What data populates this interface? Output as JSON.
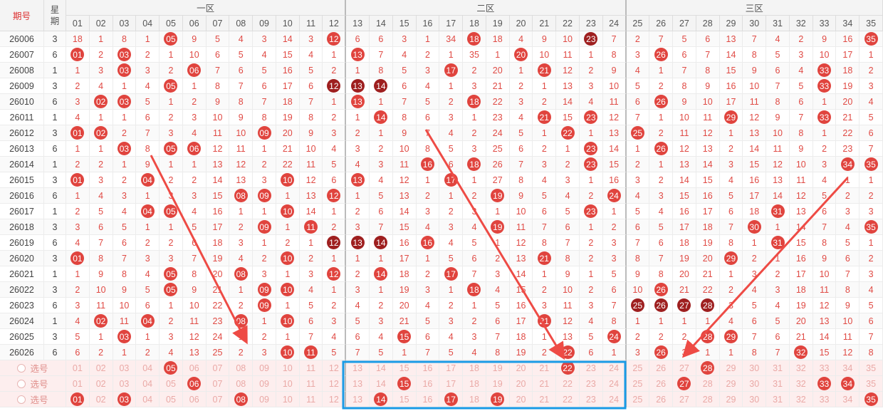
{
  "header": {
    "period": "期号",
    "weekday": "星期",
    "zones": [
      "一区",
      "二区",
      "三区"
    ],
    "numbers": [
      "01",
      "02",
      "03",
      "04",
      "05",
      "06",
      "07",
      "08",
      "09",
      "10",
      "11",
      "12",
      "13",
      "14",
      "15",
      "16",
      "17",
      "18",
      "19",
      "20",
      "21",
      "22",
      "23",
      "24",
      "25",
      "26",
      "27",
      "28",
      "29",
      "30",
      "31",
      "32",
      "33",
      "34",
      "35"
    ]
  },
  "rows": [
    {
      "period": "26006",
      "weekday": "3",
      "cells": [
        "18",
        "1",
        "8",
        "1",
        "05",
        "9",
        "5",
        "4",
        "3",
        "14",
        "3",
        "12",
        "6",
        "6",
        "3",
        "1",
        "34",
        "18",
        "18",
        "4",
        "9",
        "10",
        "23",
        "7",
        "2",
        "7",
        "5",
        "6",
        "13",
        "7",
        "4",
        "2",
        "9",
        "16",
        "35"
      ],
      "hits": [
        5,
        12,
        18,
        23,
        35
      ],
      "dark": [
        23
      ]
    },
    {
      "period": "26007",
      "weekday": "6",
      "cells": [
        "01",
        "2",
        "03",
        "2",
        "1",
        "10",
        "6",
        "5",
        "4",
        "15",
        "4",
        "1",
        "13",
        "7",
        "4",
        "2",
        "1",
        "35",
        "1",
        "20",
        "10",
        "11",
        "1",
        "8",
        "3",
        "26",
        "6",
        "7",
        "14",
        "8",
        "5",
        "3",
        "10",
        "17",
        "1"
      ],
      "hits": [
        1,
        3,
        13,
        20,
        26
      ],
      "dark": []
    },
    {
      "period": "26008",
      "weekday": "1",
      "cells": [
        "1",
        "3",
        "03",
        "3",
        "2",
        "06",
        "7",
        "6",
        "5",
        "16",
        "5",
        "2",
        "1",
        "8",
        "5",
        "3",
        "17",
        "2",
        "20",
        "1",
        "21",
        "12",
        "2",
        "9",
        "4",
        "1",
        "7",
        "8",
        "15",
        "9",
        "6",
        "4",
        "33",
        "18",
        "2"
      ],
      "hits": [
        3,
        6,
        17,
        21,
        33
      ],
      "dark": []
    },
    {
      "period": "26009",
      "weekday": "3",
      "cells": [
        "2",
        "4",
        "1",
        "4",
        "05",
        "1",
        "8",
        "7",
        "6",
        "17",
        "6",
        "12",
        "13",
        "14",
        "6",
        "4",
        "1",
        "3",
        "21",
        "2",
        "1",
        "13",
        "3",
        "10",
        "5",
        "2",
        "8",
        "9",
        "16",
        "10",
        "7",
        "5",
        "33",
        "19",
        "3"
      ],
      "hits": [
        5,
        12,
        13,
        14,
        33
      ],
      "dark": [
        12,
        13,
        14
      ]
    },
    {
      "period": "26010",
      "weekday": "6",
      "cells": [
        "3",
        "02",
        "03",
        "5",
        "1",
        "2",
        "9",
        "8",
        "7",
        "18",
        "7",
        "1",
        "13",
        "1",
        "7",
        "5",
        "2",
        "18",
        "22",
        "3",
        "2",
        "14",
        "4",
        "11",
        "6",
        "26",
        "9",
        "10",
        "17",
        "11",
        "8",
        "6",
        "1",
        "20",
        "4"
      ],
      "hits": [
        2,
        3,
        13,
        18,
        26
      ],
      "dark": []
    },
    {
      "period": "26011",
      "weekday": "1",
      "cells": [
        "4",
        "1",
        "1",
        "6",
        "2",
        "3",
        "10",
        "9",
        "8",
        "19",
        "8",
        "2",
        "1",
        "14",
        "8",
        "6",
        "3",
        "1",
        "23",
        "4",
        "21",
        "15",
        "23",
        "12",
        "7",
        "1",
        "10",
        "11",
        "29",
        "12",
        "9",
        "7",
        "33",
        "21",
        "5"
      ],
      "hits": [
        14,
        21,
        23,
        29,
        33
      ],
      "dark": []
    },
    {
      "period": "26012",
      "weekday": "3",
      "cells": [
        "01",
        "02",
        "2",
        "7",
        "3",
        "4",
        "11",
        "10",
        "09",
        "20",
        "9",
        "3",
        "2",
        "1",
        "9",
        "7",
        "4",
        "2",
        "24",
        "5",
        "1",
        "22",
        "1",
        "13",
        "25",
        "2",
        "11",
        "12",
        "1",
        "13",
        "10",
        "8",
        "1",
        "22",
        "6"
      ],
      "hits": [
        1,
        2,
        9,
        22,
        25
      ],
      "dark": []
    },
    {
      "period": "26013",
      "weekday": "6",
      "cells": [
        "1",
        "1",
        "03",
        "8",
        "05",
        "06",
        "12",
        "11",
        "1",
        "21",
        "10",
        "4",
        "3",
        "2",
        "10",
        "8",
        "5",
        "3",
        "25",
        "6",
        "2",
        "1",
        "23",
        "14",
        "1",
        "26",
        "12",
        "13",
        "2",
        "14",
        "11",
        "9",
        "2",
        "23",
        "7"
      ],
      "hits": [
        3,
        5,
        6,
        23,
        26
      ],
      "dark": []
    },
    {
      "period": "26014",
      "weekday": "1",
      "cells": [
        "2",
        "2",
        "1",
        "9",
        "1",
        "1",
        "13",
        "12",
        "2",
        "22",
        "11",
        "5",
        "4",
        "3",
        "11",
        "16",
        "6",
        "18",
        "26",
        "7",
        "3",
        "2",
        "23",
        "15",
        "2",
        "1",
        "13",
        "14",
        "3",
        "15",
        "12",
        "10",
        "3",
        "34",
        "35"
      ],
      "hits": [
        16,
        18,
        23,
        34,
        35
      ],
      "dark": []
    },
    {
      "period": "26015",
      "weekday": "3",
      "cells": [
        "01",
        "3",
        "2",
        "04",
        "2",
        "2",
        "14",
        "13",
        "3",
        "10",
        "12",
        "6",
        "13",
        "4",
        "12",
        "1",
        "17",
        "1",
        "27",
        "8",
        "4",
        "3",
        "1",
        "16",
        "3",
        "2",
        "14",
        "15",
        "4",
        "16",
        "13",
        "11",
        "4",
        "1",
        "1"
      ],
      "hits": [
        1,
        4,
        10,
        13,
        17
      ],
      "dark": []
    },
    {
      "period": "26016",
      "weekday": "6",
      "cells": [
        "1",
        "4",
        "3",
        "1",
        "3",
        "3",
        "15",
        "08",
        "09",
        "1",
        "13",
        "12",
        "1",
        "5",
        "13",
        "2",
        "1",
        "2",
        "19",
        "9",
        "5",
        "4",
        "2",
        "24",
        "4",
        "3",
        "15",
        "16",
        "5",
        "17",
        "14",
        "12",
        "5",
        "2",
        "2"
      ],
      "hits": [
        8,
        9,
        12,
        19,
        24
      ],
      "dark": []
    },
    {
      "period": "26017",
      "weekday": "1",
      "cells": [
        "2",
        "5",
        "4",
        "04",
        "05",
        "4",
        "16",
        "1",
        "1",
        "10",
        "14",
        "1",
        "2",
        "6",
        "14",
        "3",
        "2",
        "3",
        "1",
        "10",
        "6",
        "5",
        "23",
        "1",
        "5",
        "4",
        "16",
        "17",
        "6",
        "18",
        "31",
        "13",
        "6",
        "3",
        "3"
      ],
      "hits": [
        4,
        5,
        10,
        23,
        31
      ],
      "dark": []
    },
    {
      "period": "26018",
      "weekday": "3",
      "cells": [
        "3",
        "6",
        "5",
        "1",
        "1",
        "5",
        "17",
        "2",
        "09",
        "1",
        "11",
        "2",
        "3",
        "7",
        "15",
        "4",
        "3",
        "4",
        "19",
        "11",
        "7",
        "6",
        "1",
        "2",
        "6",
        "5",
        "17",
        "18",
        "7",
        "30",
        "1",
        "14",
        "7",
        "4",
        "35"
      ],
      "hits": [
        9,
        11,
        19,
        30,
        35
      ],
      "dark": []
    },
    {
      "period": "26019",
      "weekday": "6",
      "cells": [
        "4",
        "7",
        "6",
        "2",
        "2",
        "6",
        "18",
        "3",
        "1",
        "2",
        "1",
        "12",
        "13",
        "14",
        "16",
        "16",
        "4",
        "5",
        "1",
        "12",
        "8",
        "7",
        "2",
        "3",
        "7",
        "6",
        "18",
        "19",
        "8",
        "1",
        "31",
        "15",
        "8",
        "5",
        "1"
      ],
      "hits": [
        12,
        13,
        14,
        16,
        31
      ],
      "dark": [
        12,
        13,
        14
      ]
    },
    {
      "period": "26020",
      "weekday": "3",
      "cells": [
        "01",
        "8",
        "7",
        "3",
        "3",
        "7",
        "19",
        "4",
        "2",
        "10",
        "2",
        "1",
        "1",
        "1",
        "17",
        "1",
        "5",
        "6",
        "2",
        "13",
        "21",
        "8",
        "2",
        "3",
        "8",
        "7",
        "19",
        "20",
        "29",
        "2",
        "1",
        "16",
        "9",
        "6",
        "2"
      ],
      "hits": [
        1,
        10,
        21,
        29
      ],
      "dark": []
    },
    {
      "period": "26021",
      "weekday": "1",
      "cells": [
        "1",
        "9",
        "8",
        "4",
        "05",
        "8",
        "20",
        "08",
        "3",
        "1",
        "3",
        "12",
        "2",
        "14",
        "18",
        "2",
        "17",
        "7",
        "3",
        "14",
        "1",
        "9",
        "1",
        "5",
        "9",
        "8",
        "20",
        "21",
        "1",
        "3",
        "2",
        "17",
        "10",
        "7",
        "3"
      ],
      "hits": [
        5,
        8,
        12,
        14,
        17
      ],
      "dark": []
    },
    {
      "period": "26022",
      "weekday": "3",
      "cells": [
        "2",
        "10",
        "9",
        "5",
        "05",
        "9",
        "21",
        "1",
        "09",
        "10",
        "4",
        "1",
        "3",
        "1",
        "19",
        "3",
        "1",
        "18",
        "4",
        "15",
        "2",
        "10",
        "2",
        "6",
        "10",
        "26",
        "21",
        "22",
        "2",
        "4",
        "3",
        "18",
        "11",
        "8",
        "4"
      ],
      "hits": [
        5,
        9,
        10,
        18,
        26
      ],
      "dark": []
    },
    {
      "period": "26023",
      "weekday": "6",
      "cells": [
        "3",
        "11",
        "10",
        "6",
        "1",
        "10",
        "22",
        "2",
        "09",
        "1",
        "5",
        "2",
        "4",
        "2",
        "20",
        "4",
        "2",
        "1",
        "5",
        "16",
        "3",
        "11",
        "3",
        "7",
        "25",
        "26",
        "27",
        "28",
        "3",
        "5",
        "4",
        "19",
        "12",
        "9",
        "5"
      ],
      "hits": [
        9,
        25,
        26,
        27,
        28
      ],
      "dark": [
        25,
        26,
        27,
        28
      ]
    },
    {
      "period": "26024",
      "weekday": "1",
      "cells": [
        "4",
        "02",
        "11",
        "04",
        "2",
        "11",
        "23",
        "08",
        "1",
        "10",
        "6",
        "3",
        "5",
        "3",
        "21",
        "5",
        "3",
        "2",
        "6",
        "17",
        "21",
        "12",
        "4",
        "8",
        "1",
        "1",
        "1",
        "1",
        "4",
        "6",
        "5",
        "20",
        "13",
        "10",
        "6"
      ],
      "hits": [
        2,
        4,
        8,
        10,
        21
      ],
      "dark": []
    },
    {
      "period": "26025",
      "weekday": "3",
      "cells": [
        "5",
        "1",
        "03",
        "1",
        "3",
        "12",
        "24",
        "1",
        "2",
        "1",
        "7",
        "4",
        "6",
        "4",
        "15",
        "6",
        "4",
        "3",
        "7",
        "18",
        "1",
        "13",
        "5",
        "24",
        "2",
        "2",
        "2",
        "28",
        "29",
        "7",
        "6",
        "21",
        "14",
        "11",
        "7"
      ],
      "hits": [
        3,
        15,
        24,
        28,
        29
      ],
      "dark": []
    },
    {
      "period": "26026",
      "weekday": "6",
      "cells": [
        "6",
        "2",
        "1",
        "2",
        "4",
        "13",
        "25",
        "2",
        "3",
        "10",
        "11",
        "5",
        "7",
        "5",
        "1",
        "7",
        "5",
        "4",
        "8",
        "19",
        "2",
        "22",
        "6",
        "1",
        "3",
        "26",
        "3",
        "1",
        "1",
        "8",
        "7",
        "32",
        "15",
        "12",
        "8"
      ],
      "hits": [
        10,
        11,
        22,
        26,
        32
      ],
      "dark": []
    }
  ],
  "picks": {
    "label": "选号",
    "rows": [
      {
        "selected": [
          5,
          22,
          28
        ]
      },
      {
        "selected": [
          6,
          15,
          27,
          33,
          34
        ]
      },
      {
        "selected": [
          1,
          3,
          8,
          14,
          17,
          19,
          35
        ]
      }
    ]
  }
}
